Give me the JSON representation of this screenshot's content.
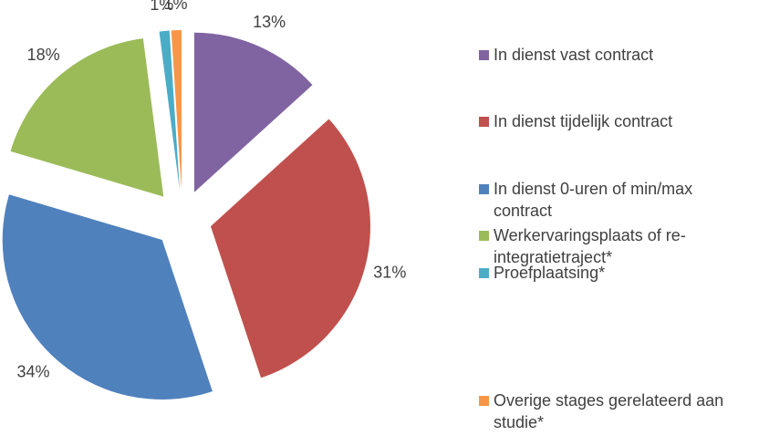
{
  "chart_data": {
    "type": "pie",
    "categories": [
      "In dienst vast contract",
      "In dienst tijdelijk contract",
      "In dienst 0-uren of min/max contract",
      "Werkervaringsplaats of re-integratietraject*",
      "Proefplaatsing*",
      "Overige stages gerelateerd aan studie*"
    ],
    "values": [
      13,
      31,
      34,
      18,
      1,
      1
    ],
    "value_labels": [
      "13%",
      "31%",
      "34%",
      "18%",
      "1%",
      "1%"
    ],
    "colors": [
      "#8064a2",
      "#c0504d",
      "#4f81bd",
      "#9bbb59",
      "#4bacc6",
      "#f79646"
    ],
    "legend": "right"
  }
}
